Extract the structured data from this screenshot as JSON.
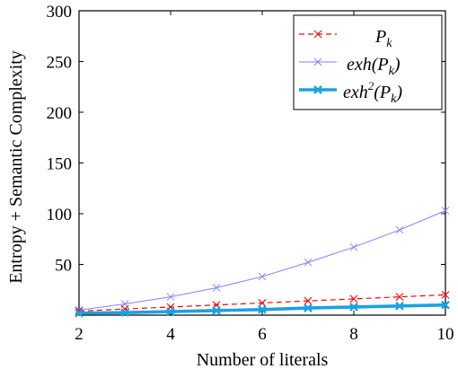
{
  "chart_data": {
    "type": "line",
    "xlabel": "Number of literals",
    "ylabel": "Entropy + Semantic Complexity",
    "xlim": [
      2,
      10
    ],
    "ylim": [
      0,
      300
    ],
    "xticks": [
      "2",
      "4",
      "6",
      "8",
      "10"
    ],
    "yticks": [
      "50",
      "100",
      "150",
      "200",
      "250",
      "300"
    ],
    "grid": false,
    "legend_position": "top-right",
    "x": [
      2,
      3,
      4,
      5,
      6,
      7,
      8,
      9,
      10
    ],
    "series": [
      {
        "name": "P_k",
        "legend_main": "P",
        "legend_sub": "k",
        "color": "#ff0000",
        "style": "dashed",
        "marker": "x",
        "values": [
          4,
          6,
          8,
          10,
          12,
          14,
          16,
          18,
          20
        ]
      },
      {
        "name": "exh(P_k)",
        "legend_pre": "exh(P",
        "legend_sub": "k",
        "legend_post": ")",
        "color": "#8080ff",
        "style": "solid",
        "marker": "x",
        "values": [
          5,
          11,
          18,
          27,
          38,
          52,
          67,
          84,
          103
        ]
      },
      {
        "name": "exh²(P_k)",
        "legend_pre": "exh",
        "legend_sup": "2",
        "legend_mid": "(P",
        "legend_sub": "k",
        "legend_post": ")",
        "color": "#1ba1e2",
        "style": "thick",
        "marker": "x",
        "values": [
          2,
          2.5,
          3.5,
          4.5,
          5.5,
          7,
          8,
          9,
          10
        ]
      }
    ]
  }
}
